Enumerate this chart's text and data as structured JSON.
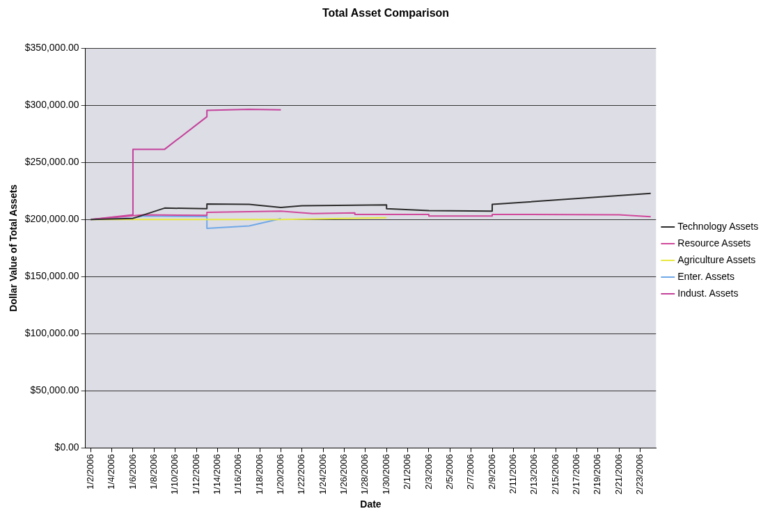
{
  "chart_data": {
    "type": "line",
    "title": "Total Asset Comparison",
    "xlabel": "Date",
    "ylabel": "Dollar Value of Total Assets",
    "xlim": [
      "2006-01-01T12:00",
      "2006-02-24T12:00"
    ],
    "xticks": [
      {
        "value": "2006-01-02",
        "label": "1/2/2006"
      },
      {
        "value": "2006-01-04",
        "label": "1/4/2006"
      },
      {
        "value": "2006-01-06",
        "label": "1/6/2006"
      },
      {
        "value": "2006-01-08",
        "label": "1/8/2006"
      },
      {
        "value": "2006-01-10",
        "label": "1/10/2006"
      },
      {
        "value": "2006-01-12",
        "label": "1/12/2006"
      },
      {
        "value": "2006-01-14",
        "label": "1/14/2006"
      },
      {
        "value": "2006-01-16",
        "label": "1/16/2006"
      },
      {
        "value": "2006-01-18",
        "label": "1/18/2006"
      },
      {
        "value": "2006-01-20",
        "label": "1/20/2006"
      },
      {
        "value": "2006-01-22",
        "label": "1/22/2006"
      },
      {
        "value": "2006-01-24",
        "label": "1/24/2006"
      },
      {
        "value": "2006-01-26",
        "label": "1/26/2006"
      },
      {
        "value": "2006-01-28",
        "label": "1/28/2006"
      },
      {
        "value": "2006-01-30",
        "label": "1/30/2006"
      },
      {
        "value": "2006-02-01",
        "label": "2/1/2006"
      },
      {
        "value": "2006-02-03",
        "label": "2/3/2006"
      },
      {
        "value": "2006-02-05",
        "label": "2/5/2006"
      },
      {
        "value": "2006-02-07",
        "label": "2/7/2006"
      },
      {
        "value": "2006-02-09",
        "label": "2/9/2006"
      },
      {
        "value": "2006-02-11",
        "label": "2/11/2006"
      },
      {
        "value": "2006-02-13",
        "label": "2/13/2006"
      },
      {
        "value": "2006-02-15",
        "label": "2/15/2006"
      },
      {
        "value": "2006-02-17",
        "label": "2/17/2006"
      },
      {
        "value": "2006-02-19",
        "label": "2/19/2006"
      },
      {
        "value": "2006-02-21",
        "label": "2/21/2006"
      },
      {
        "value": "2006-02-23",
        "label": "2/23/2006"
      }
    ],
    "ylim": [
      0,
      350000
    ],
    "yticks": [
      {
        "value": 0,
        "label": "$0.00"
      },
      {
        "value": 50000,
        "label": "$50,000.00"
      },
      {
        "value": 100000,
        "label": "$100,000.00"
      },
      {
        "value": 150000,
        "label": "$150,000.00"
      },
      {
        "value": 200000,
        "label": "$200,000.00"
      },
      {
        "value": 250000,
        "label": "$250,000.00"
      },
      {
        "value": 300000,
        "label": "$300,000.00"
      },
      {
        "value": 350000,
        "label": "$350,000.00"
      }
    ],
    "grid": "y",
    "legend": "right",
    "marker": "none",
    "line_style": "solid",
    "series": [
      {
        "name": "Technology Assets",
        "color": "#2b2b2b",
        "x": [
          "2006-01-02",
          "2006-01-06",
          "2006-01-09",
          "2006-01-13",
          "2006-01-13",
          "2006-01-17",
          "2006-01-20",
          "2006-01-22",
          "2006-01-30",
          "2006-01-30",
          "2006-02-03",
          "2006-02-09",
          "2006-02-09",
          "2006-02-24"
        ],
        "values": [
          200000,
          201000,
          210000,
          209500,
          213600,
          213200,
          210600,
          212100,
          212800,
          209500,
          207800,
          207400,
          213200,
          222900
        ]
      },
      {
        "name": "Resource Assets",
        "color": "#d0489a",
        "x": [
          "2006-01-02",
          "2006-01-07",
          "2006-01-13",
          "2006-01-13",
          "2006-01-20",
          "2006-01-23",
          "2006-01-27",
          "2006-01-27",
          "2006-02-03",
          "2006-02-03",
          "2006-02-09",
          "2006-02-09",
          "2006-02-21",
          "2006-02-24"
        ],
        "values": [
          200000,
          204100,
          203700,
          206300,
          207300,
          205200,
          205800,
          204500,
          204500,
          203000,
          203000,
          204500,
          204100,
          202400
        ]
      },
      {
        "name": "Agriculture Assets",
        "color": "#e8e840",
        "x": [
          "2006-01-02",
          "2006-01-20",
          "2006-01-30"
        ],
        "values": [
          200000,
          200000,
          201500
        ]
      },
      {
        "name": "Enter. Assets",
        "color": "#6fa8e8",
        "x": [
          "2006-01-02",
          "2006-01-06",
          "2006-01-07",
          "2006-01-13",
          "2006-01-13",
          "2006-01-17",
          "2006-01-20"
        ],
        "values": [
          200000,
          201300,
          203000,
          202600,
          192200,
          194400,
          200800
        ]
      },
      {
        "name": "Indust. Assets",
        "color": "#c4419b",
        "x": [
          "2006-01-02",
          "2006-01-06",
          "2006-01-06",
          "2006-01-09",
          "2006-01-13",
          "2006-01-13",
          "2006-01-17",
          "2006-01-20"
        ],
        "values": [
          200000,
          204100,
          261500,
          261500,
          290000,
          295500,
          296500,
          296000
        ]
      }
    ]
  }
}
